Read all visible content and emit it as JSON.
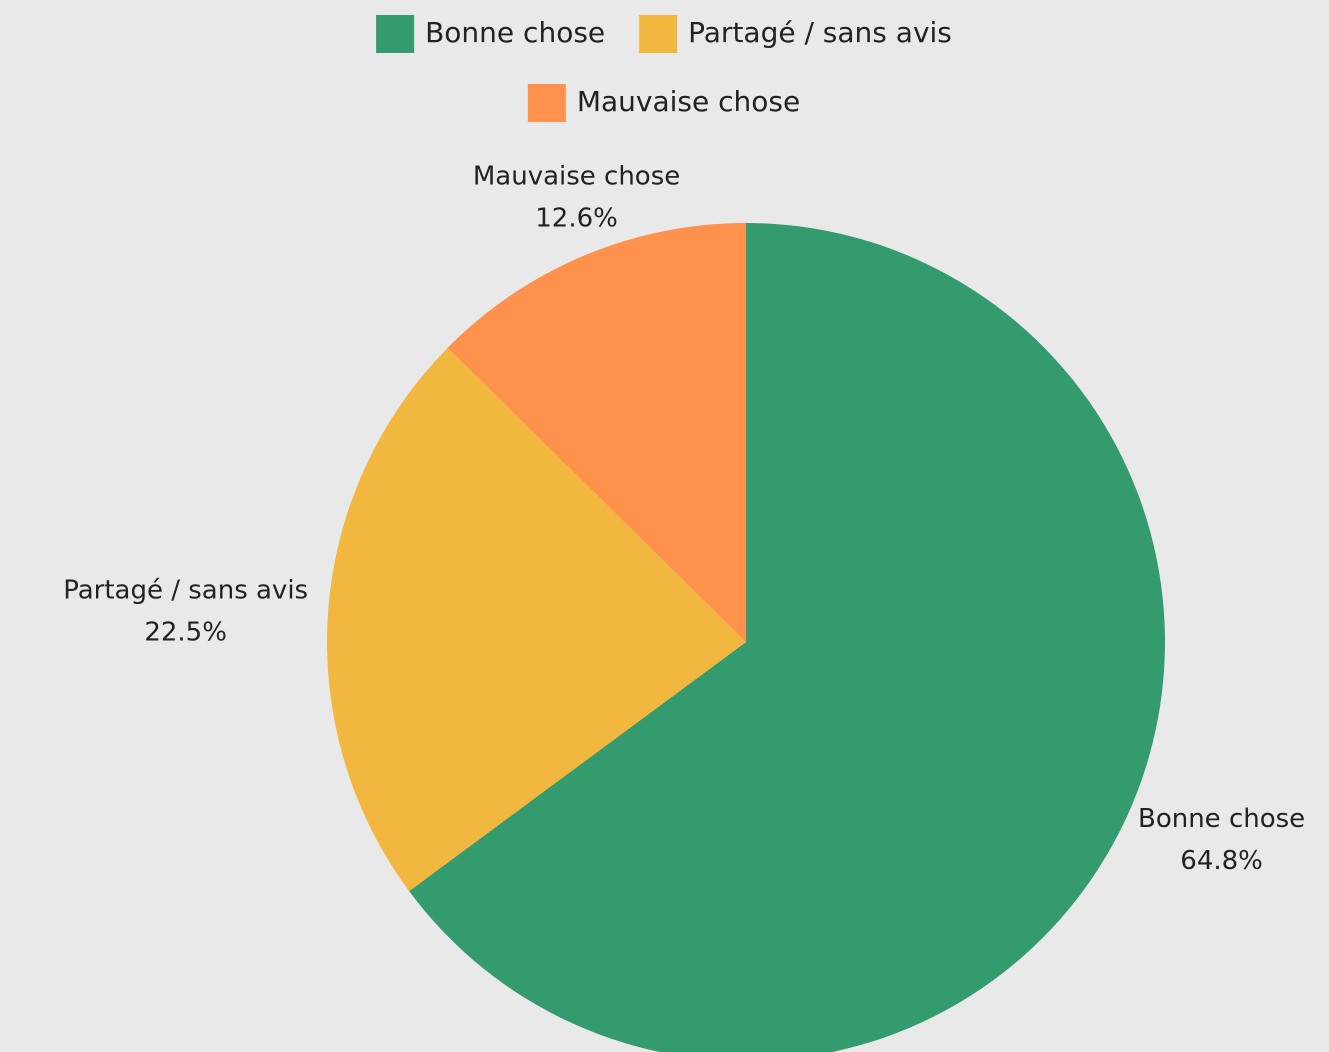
{
  "chart_data": {
    "type": "pie",
    "categories": [
      "Bonne chose",
      "Partagé / sans avis",
      "Mauvaise chose"
    ],
    "values": [
      64.8,
      22.5,
      12.6
    ],
    "value_labels": [
      "64.8%",
      "22.5%",
      "12.6%"
    ],
    "colors": [
      "#339b6e",
      "#f2b73e",
      "#fe914b"
    ],
    "legend": "top"
  }
}
